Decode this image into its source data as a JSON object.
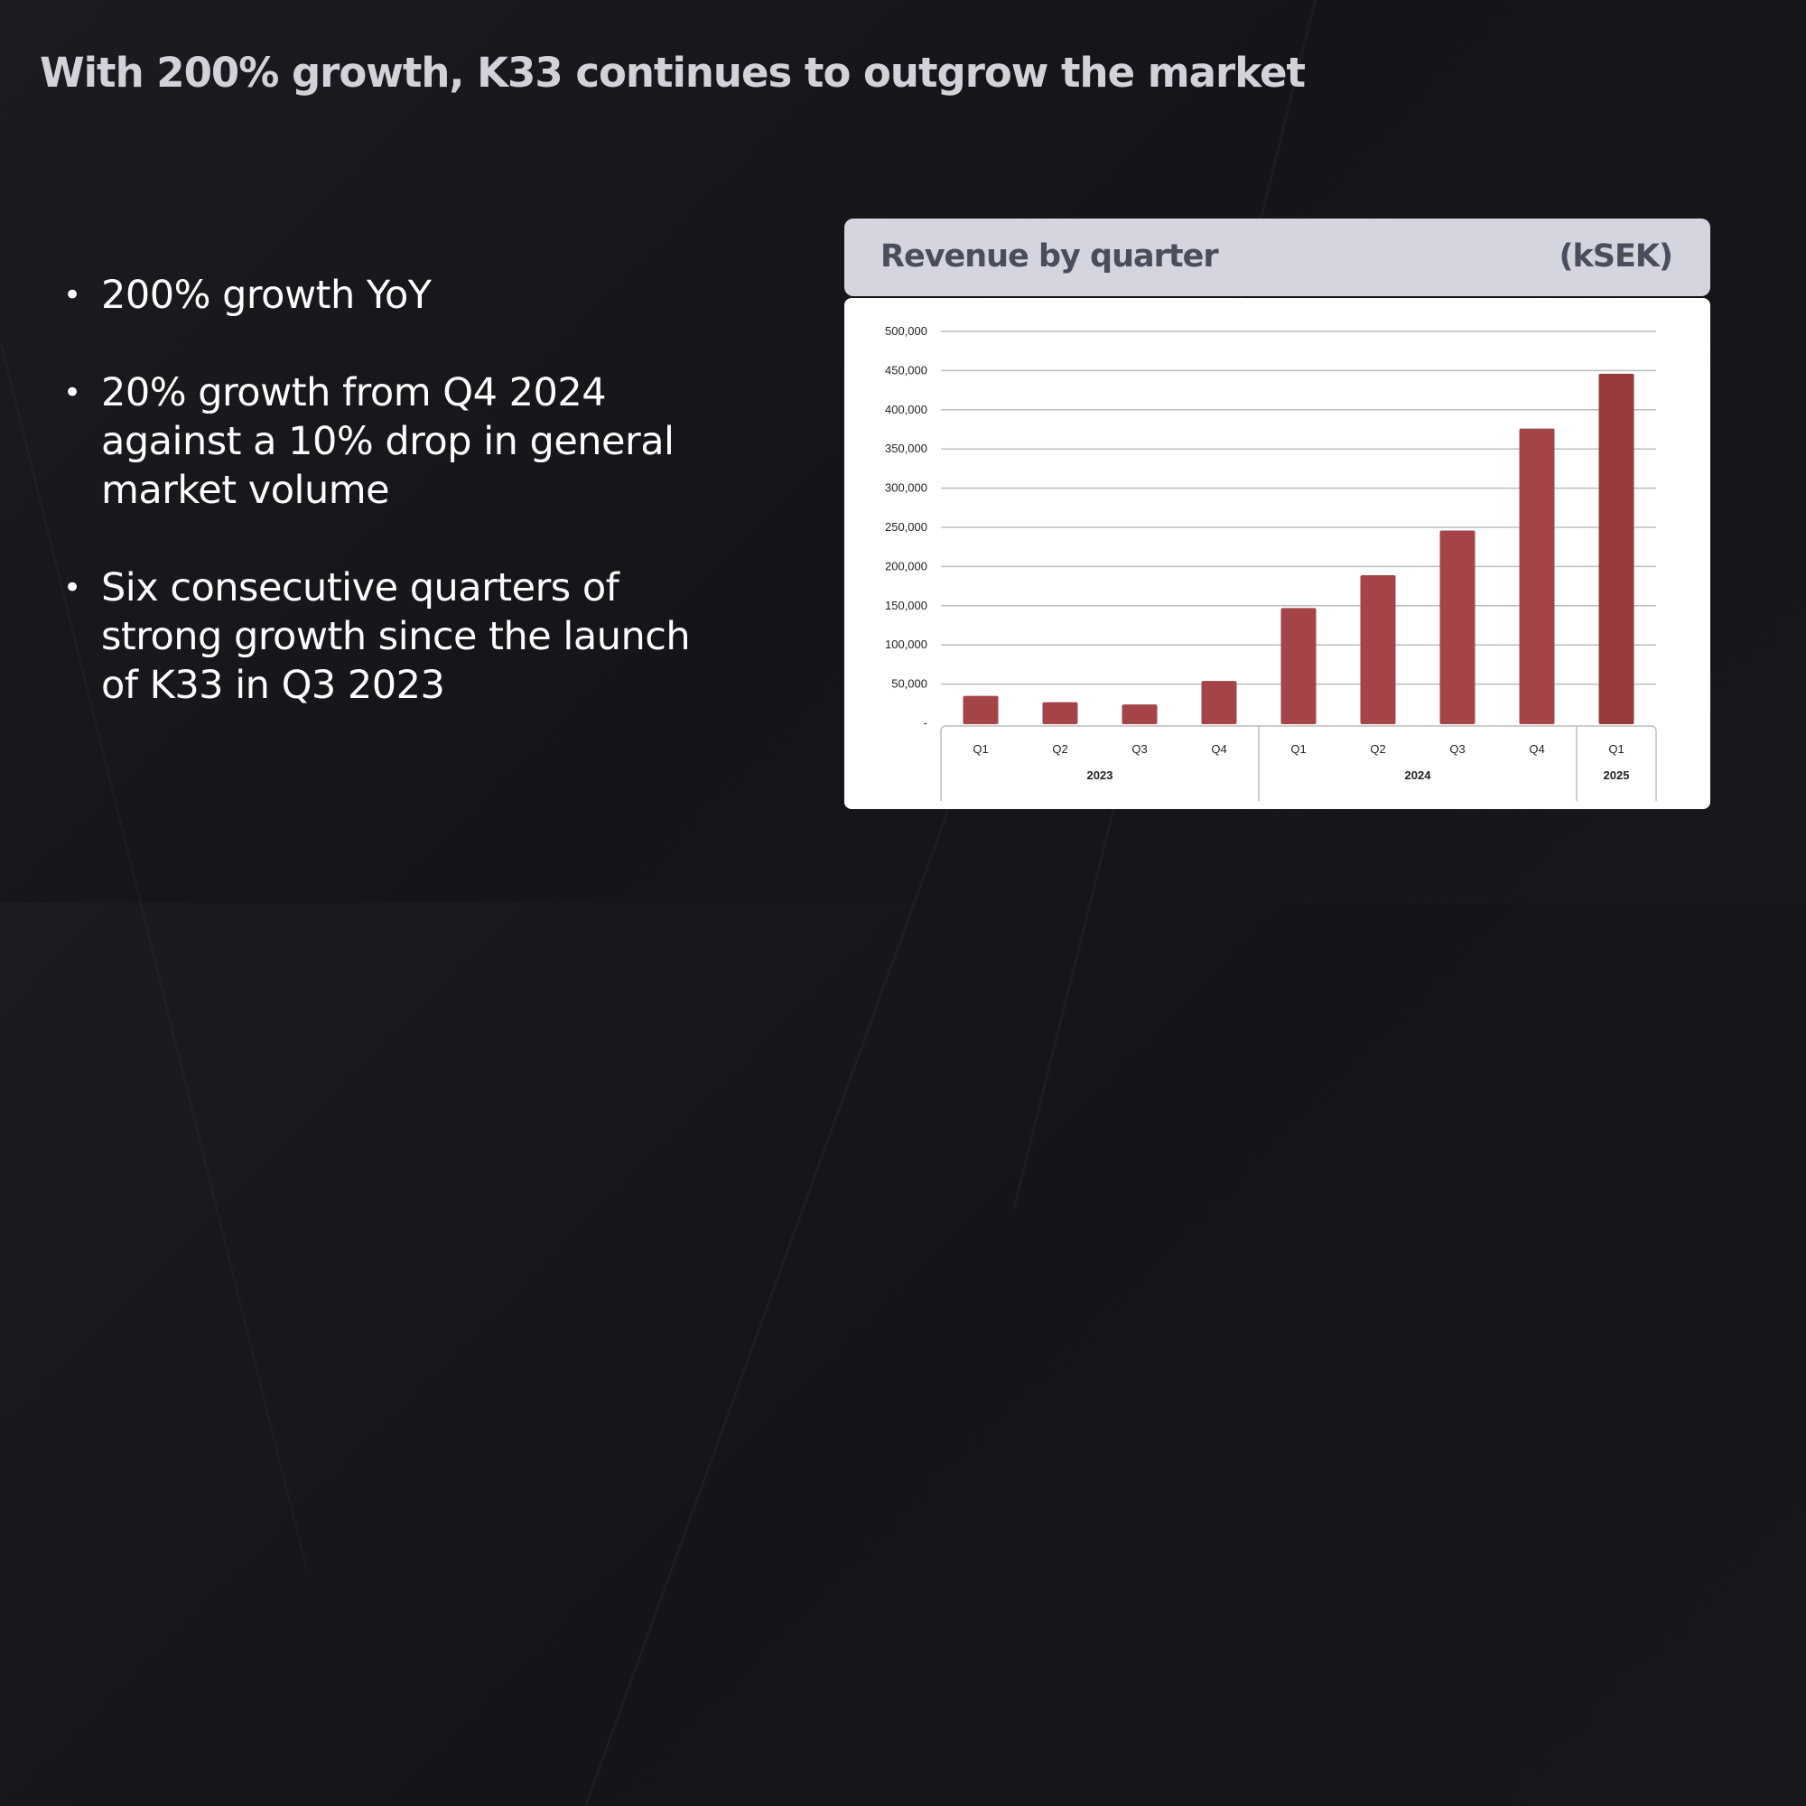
{
  "slide": {
    "title": "With 200% growth, K33 continues to outgrow the market",
    "bullets": [
      "200% growth YoY",
      "20% growth from Q4 2024 against a 10% drop in general market volume",
      "Six consecutive quarters of strong growth since the launch of K33 in Q3 2023"
    ]
  },
  "colors": {
    "bar": "#a54448",
    "bar_last": "#973a3e",
    "grid": "#bdbdbd"
  },
  "chart_data": {
    "type": "bar",
    "title": "Revenue by quarter",
    "unit": "(kSEK)",
    "categories": [
      "Q1",
      "Q2",
      "Q3",
      "Q4",
      "Q1",
      "Q2",
      "Q3",
      "Q4",
      "Q1"
    ],
    "groups": [
      {
        "label": "2023",
        "count": 4
      },
      {
        "label": "2024",
        "count": 4
      },
      {
        "label": "2025",
        "count": 1
      }
    ],
    "values": [
      35000,
      27000,
      24000,
      54000,
      147000,
      189000,
      246000,
      376000,
      446000
    ],
    "ylim": [
      0,
      500000
    ],
    "yticks": [
      0,
      50000,
      100000,
      150000,
      200000,
      250000,
      300000,
      350000,
      400000,
      450000,
      500000
    ],
    "ytick_labels": [
      "-",
      "50,000",
      "100,000",
      "150,000",
      "200,000",
      "250,000",
      "300,000",
      "350,000",
      "400,000",
      "450,000",
      "500,000"
    ],
    "grid": true,
    "legend": "none"
  }
}
